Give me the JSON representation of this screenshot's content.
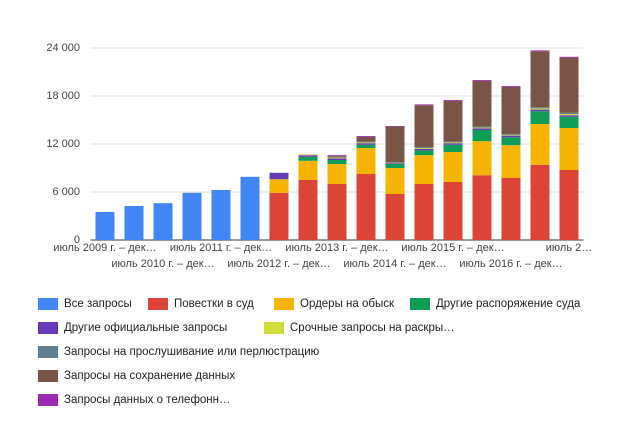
{
  "chart_data": {
    "type": "stacked_bar",
    "categories": [
      "июль 2009 г. – дек…",
      null,
      "июль 2010 г. – дек…",
      null,
      "июль 2011 г. – дек…",
      null,
      "июль 2012 г. – дек…",
      null,
      "июль 2013 г. – дек…",
      null,
      "июль 2014 г. – дек…",
      null,
      "июль 2015 г. – дек…",
      null,
      "июль 2016 г. – дек…",
      null,
      "июль 2…"
    ],
    "ylim": [
      0,
      24000
    ],
    "yticks": [
      {
        "value": 0,
        "label": "0"
      },
      {
        "value": 6000,
        "label": "6 000"
      },
      {
        "value": 12000,
        "label": "12 000"
      },
      {
        "value": 18000,
        "label": "18 000"
      },
      {
        "value": 24000,
        "label": "24 000"
      }
    ],
    "grid": true,
    "legend": "bottom",
    "series": [
      {
        "name": "Все запросы",
        "color": "#4285f4",
        "values": [
          3500,
          4250,
          4600,
          5900,
          6250,
          7900,
          null,
          null,
          null,
          null,
          null,
          null,
          null,
          null,
          null,
          null,
          null
        ]
      },
      {
        "name": "Повестки в суд",
        "color": "#db4437",
        "values": [
          null,
          null,
          null,
          null,
          null,
          null,
          5900,
          7500,
          7000,
          8250,
          5750,
          7000,
          7250,
          8100,
          7750,
          9400,
          8750
        ]
      },
      {
        "name": "Ордеры на обыск",
        "color": "#f4b400",
        "values": [
          null,
          null,
          null,
          null,
          null,
          null,
          1700,
          2400,
          2500,
          3250,
          3250,
          3600,
          3750,
          4250,
          4100,
          5100,
          5250
        ]
      },
      {
        "name": "Другие распоряжение суда",
        "color": "#0f9d58",
        "values": [
          null,
          null,
          null,
          null,
          null,
          null,
          null,
          500,
          500,
          400,
          500,
          600,
          900,
          1400,
          1000,
          1600,
          1400
        ]
      },
      {
        "name": "Другие официальные запросы",
        "color": "#673ab7",
        "values": [
          null,
          null,
          null,
          null,
          null,
          null,
          800,
          200,
          200,
          200,
          100,
          200,
          200,
          200,
          200,
          200,
          200
        ]
      },
      {
        "name": "Срочные запросы на раскры…",
        "color": "#cddc39",
        "values": [
          null,
          null,
          null,
          null,
          null,
          null,
          null,
          100,
          100,
          100,
          50,
          100,
          100,
          100,
          100,
          150,
          150
        ]
      },
      {
        "name": "Запросы на прослушивание или перлюстрацию",
        "color": "#607d8b",
        "values": [
          null,
          null,
          null,
          null,
          null,
          null,
          null,
          null,
          100,
          100,
          50,
          100,
          100,
          100,
          100,
          150,
          150
        ]
      },
      {
        "name": "Запросы на сохранение данных",
        "color": "#795548",
        "values": [
          null,
          null,
          null,
          null,
          null,
          null,
          null,
          null,
          100,
          600,
          4500,
          5250,
          5100,
          5750,
          5900,
          7000,
          6900
        ]
      },
      {
        "name": "Запросы данных о телефонн…",
        "color": "#9c27b0",
        "values": [
          null,
          null,
          null,
          null,
          null,
          null,
          null,
          null,
          100,
          100,
          50,
          100,
          100,
          100,
          100,
          100,
          100
        ]
      }
    ]
  }
}
